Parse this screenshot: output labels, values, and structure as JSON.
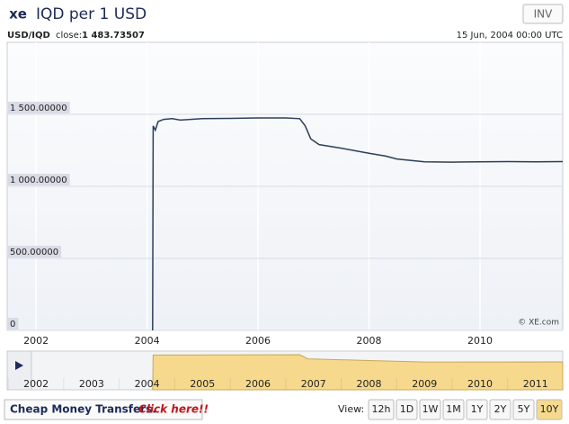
{
  "header": {
    "logo": "xe",
    "title": "IQD per 1 USD",
    "button": "INV",
    "pair": "USD/IQD",
    "close_label": "close:",
    "close_value": "1 483.73507",
    "date": "15 Jun, 2004 00:00 UTC"
  },
  "chart_data": [
    {
      "type": "line",
      "color": "#2b3f5c",
      "grid": true,
      "x": [
        2004.1,
        2004.11,
        2004.15,
        2004.2,
        2004.3,
        2004.45,
        2004.6,
        2005,
        2005.5,
        2006,
        2006.5,
        2006.75,
        2006.85,
        2006.95,
        2007.1,
        2007.5,
        2008,
        2008.3,
        2008.5,
        2009,
        2009.5,
        2010,
        2010.5,
        2011,
        2011.49
      ],
      "values": [
        0,
        1420,
        1390,
        1450,
        1465,
        1470,
        1460,
        1470,
        1472,
        1475,
        1475,
        1470,
        1420,
        1330,
        1290,
        1265,
        1230,
        1210,
        1190,
        1170,
        1168,
        1170,
        1172,
        1170,
        1172
      ],
      "xlim": [
        2001.48,
        2011.49
      ],
      "xticks": [
        2002,
        2004,
        2006,
        2008,
        2010
      ],
      "ylim": [
        0,
        2000
      ],
      "yticks": [
        0,
        {
          "value": 500,
          "label": "500.00000"
        },
        {
          "value": 1000,
          "label": "1 000.00000"
        },
        {
          "value": 1500,
          "label": "1 500.00000"
        }
      ],
      "annotation": "© XE.com"
    },
    {
      "type": "area",
      "color": "#f6d98c",
      "x": [
        2004.1,
        2004.11,
        2006.75,
        2006.9,
        2008,
        2009,
        2011.49
      ],
      "values": [
        0,
        1460,
        1475,
        1300,
        1230,
        1170,
        1172
      ],
      "xlim": [
        2001.48,
        2011.49
      ],
      "xticks": [
        2002,
        2003,
        2004,
        2005,
        2006,
        2007,
        2008,
        2009,
        2010,
        2011
      ],
      "ylim": [
        0,
        1550
      ]
    }
  ],
  "footer": {
    "promo": "Cheap Money Transfers.",
    "link": "Click here!!",
    "view_label": "View:",
    "views": [
      "12h",
      "1D",
      "1W",
      "1M",
      "1Y",
      "2Y",
      "5Y",
      "10Y"
    ],
    "active_view": "10Y"
  }
}
